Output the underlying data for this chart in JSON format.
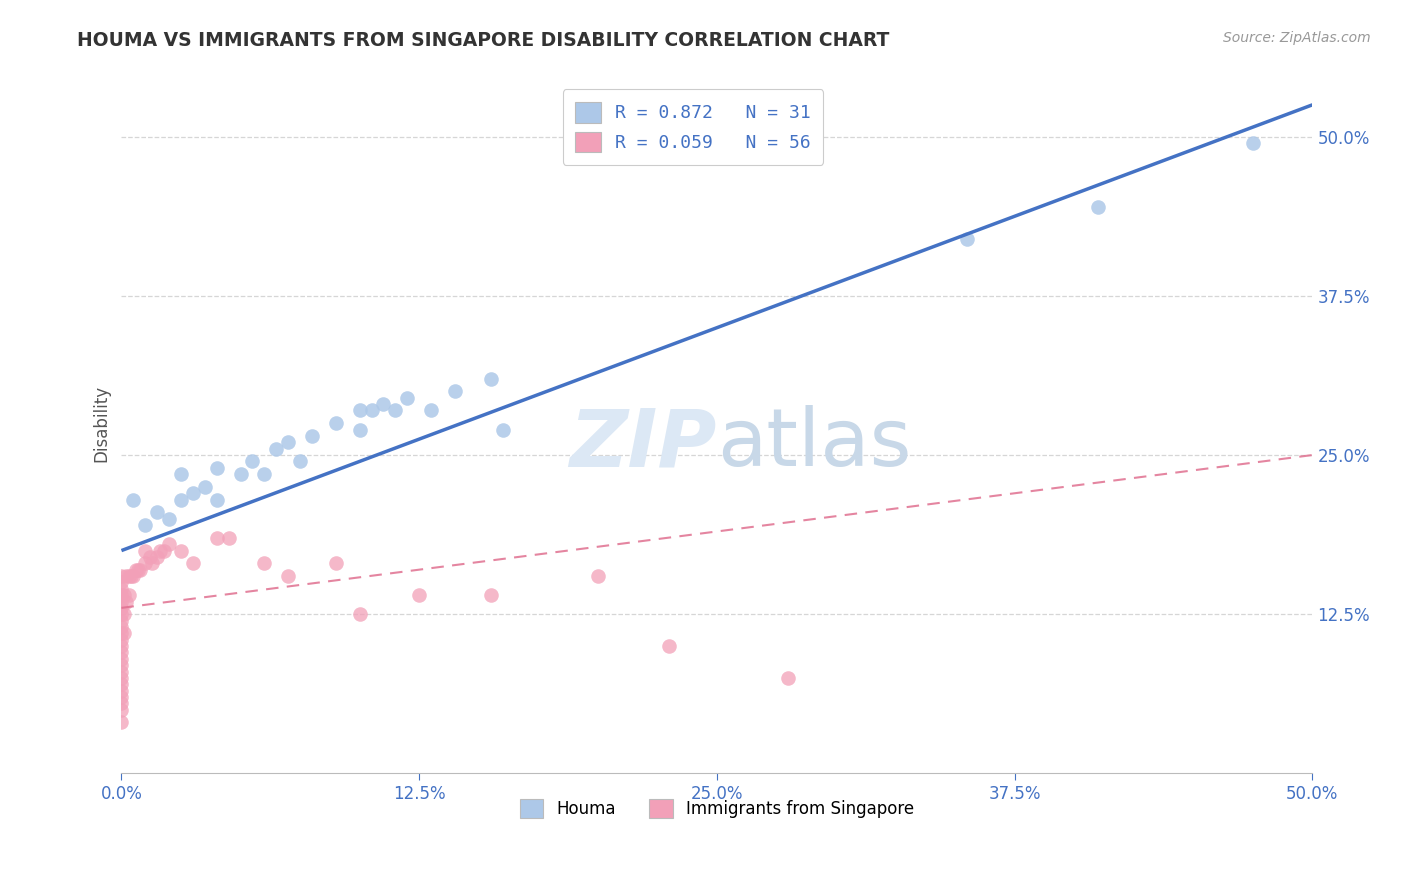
{
  "title": "HOUMA VS IMMIGRANTS FROM SINGAPORE DISABILITY CORRELATION CHART",
  "source": "Source: ZipAtlas.com",
  "ylabel": "Disability",
  "xlim": [
    0.0,
    0.5
  ],
  "ylim": [
    0.0,
    0.55
  ],
  "xtick_labels": [
    "0.0%",
    "",
    "12.5%",
    "",
    "25.0%",
    "",
    "37.5%",
    "",
    "50.0%"
  ],
  "xtick_vals": [
    0.0,
    0.0625,
    0.125,
    0.1875,
    0.25,
    0.3125,
    0.375,
    0.4375,
    0.5
  ],
  "xtick_display": [
    "0.0%",
    "12.5%",
    "25.0%",
    "37.5%",
    "50.0%"
  ],
  "xtick_display_vals": [
    0.0,
    0.125,
    0.25,
    0.375,
    0.5
  ],
  "ytick_labels": [
    "12.5%",
    "25.0%",
    "37.5%",
    "50.0%"
  ],
  "ytick_vals": [
    0.125,
    0.25,
    0.375,
    0.5
  ],
  "legend_labels": [
    "Houma",
    "Immigrants from Singapore"
  ],
  "houma_R": 0.872,
  "houma_N": 31,
  "singapore_R": 0.059,
  "singapore_N": 56,
  "houma_color": "#adc8e8",
  "houma_line_color": "#4472c4",
  "singapore_color": "#f2a0b8",
  "singapore_line_color": "#e07090",
  "houma_line_x0": 0.0,
  "houma_line_y0": 0.175,
  "houma_line_x1": 0.5,
  "houma_line_y1": 0.525,
  "singapore_line_x0": 0.0,
  "singapore_line_y0": 0.13,
  "singapore_line_x1": 0.5,
  "singapore_line_y1": 0.25,
  "houma_scatter_x": [
    0.005,
    0.01,
    0.015,
    0.02,
    0.025,
    0.025,
    0.03,
    0.035,
    0.04,
    0.04,
    0.05,
    0.055,
    0.06,
    0.065,
    0.07,
    0.075,
    0.08,
    0.09,
    0.1,
    0.1,
    0.105,
    0.11,
    0.115,
    0.12,
    0.13,
    0.14,
    0.155,
    0.16,
    0.355,
    0.41,
    0.475
  ],
  "houma_scatter_y": [
    0.215,
    0.195,
    0.205,
    0.2,
    0.215,
    0.235,
    0.22,
    0.225,
    0.24,
    0.215,
    0.235,
    0.245,
    0.235,
    0.255,
    0.26,
    0.245,
    0.265,
    0.275,
    0.27,
    0.285,
    0.285,
    0.29,
    0.285,
    0.295,
    0.285,
    0.3,
    0.31,
    0.27,
    0.42,
    0.445,
    0.495
  ],
  "singapore_scatter_x": [
    0.0,
    0.0,
    0.0,
    0.0,
    0.0,
    0.0,
    0.0,
    0.0,
    0.0,
    0.0,
    0.0,
    0.0,
    0.0,
    0.0,
    0.0,
    0.0,
    0.0,
    0.0,
    0.0,
    0.0,
    0.0,
    0.0,
    0.0,
    0.001,
    0.001,
    0.001,
    0.002,
    0.002,
    0.003,
    0.003,
    0.004,
    0.005,
    0.006,
    0.007,
    0.008,
    0.01,
    0.01,
    0.012,
    0.013,
    0.015,
    0.016,
    0.018,
    0.02,
    0.025,
    0.03,
    0.04,
    0.045,
    0.06,
    0.07,
    0.09,
    0.1,
    0.125,
    0.155,
    0.2,
    0.23,
    0.28
  ],
  "singapore_scatter_y": [
    0.04,
    0.05,
    0.055,
    0.06,
    0.065,
    0.07,
    0.075,
    0.08,
    0.085,
    0.09,
    0.095,
    0.1,
    0.105,
    0.11,
    0.115,
    0.12,
    0.125,
    0.13,
    0.135,
    0.14,
    0.145,
    0.15,
    0.155,
    0.11,
    0.125,
    0.14,
    0.135,
    0.155,
    0.14,
    0.155,
    0.155,
    0.155,
    0.16,
    0.16,
    0.16,
    0.165,
    0.175,
    0.17,
    0.165,
    0.17,
    0.175,
    0.175,
    0.18,
    0.175,
    0.165,
    0.185,
    0.185,
    0.165,
    0.155,
    0.165,
    0.125,
    0.14,
    0.14,
    0.155,
    0.1,
    0.075
  ]
}
